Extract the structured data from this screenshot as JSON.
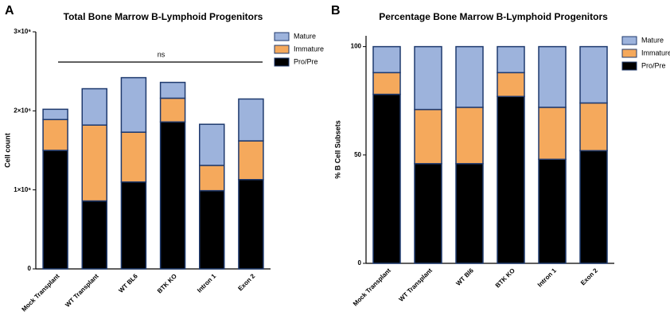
{
  "panels": [
    "A",
    "B"
  ],
  "chart_data": [
    {
      "type": "stacked_bar",
      "title": "Total Bone Marrow B-Lymphoid Progenitors",
      "y_label": "Cell count",
      "categories": [
        "Mock Transplant",
        "WT Transplant",
        "WT BL6",
        "BTK KO",
        "Intron 1",
        "Exon 2"
      ],
      "series": [
        {
          "name": "Pro/Pre",
          "color": "#000000",
          "values": [
            1500000,
            860000,
            1100000,
            1860000,
            990000,
            1130000
          ]
        },
        {
          "name": "Immature",
          "color": "#f5a95c",
          "values": [
            390000,
            960000,
            630000,
            300000,
            320000,
            490000
          ]
        },
        {
          "name": "Mature",
          "color": "#9db3dc",
          "values": [
            130000,
            460000,
            690000,
            200000,
            520000,
            530000
          ]
        }
      ],
      "ylim": [
        0,
        3000000
      ],
      "yticks": [
        0,
        {
          "value": 1000000,
          "label": "1×10⁶"
        },
        {
          "value": 2000000,
          "label": "2×10⁶"
        },
        {
          "value": 3000000,
          "label": "3×10⁶"
        }
      ],
      "annotation": "ns",
      "legend": "upper right",
      "grid": false
    },
    {
      "type": "stacked_bar",
      "title": "Percentage Bone Marrow B-Lymphoid Progenitors",
      "y_label": "% B Cell Subsets",
      "categories": [
        "Mock Transplant",
        "WT Transplant",
        "WT Bl6",
        "BTK KO",
        "Intron 1",
        "Exon 2"
      ],
      "series": [
        {
          "name": "Pro/Pre",
          "color": "#000000",
          "values": [
            78,
            46,
            46,
            77,
            48,
            52
          ]
        },
        {
          "name": "Immature",
          "color": "#f5a95c",
          "values": [
            10,
            25,
            26,
            11,
            24,
            22
          ]
        },
        {
          "name": "Mature",
          "color": "#9db3dc",
          "values": [
            12,
            29,
            28,
            12,
            28,
            26
          ]
        }
      ],
      "ylim": [
        0,
        105
      ],
      "yticks": [
        0,
        50,
        100
      ],
      "legend": "upper right",
      "grid": false
    }
  ]
}
